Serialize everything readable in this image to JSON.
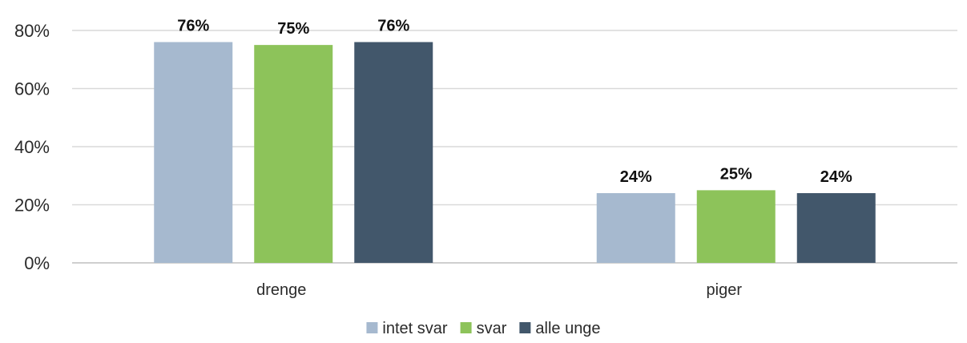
{
  "chart_data": {
    "type": "bar",
    "categories": [
      "drenge",
      "piger"
    ],
    "series": [
      {
        "name": "intet svar",
        "color": "#a6b9cf",
        "values": [
          76,
          24
        ],
        "labels": [
          "76%",
          "24%"
        ]
      },
      {
        "name": "svar",
        "color": "#8dc35a",
        "values": [
          75,
          25
        ],
        "labels": [
          "75%",
          "25%"
        ]
      },
      {
        "name": "alle unge",
        "color": "#42576b",
        "values": [
          76,
          24
        ],
        "labels": [
          "76%",
          "24%"
        ]
      }
    ],
    "yticks": [
      "0%",
      "20%",
      "40%",
      "60%",
      "80%"
    ],
    "ytick_values": [
      0,
      20,
      40,
      60,
      80
    ],
    "ylim": [
      0,
      80
    ],
    "grid": true,
    "legend_position": "bottom"
  }
}
